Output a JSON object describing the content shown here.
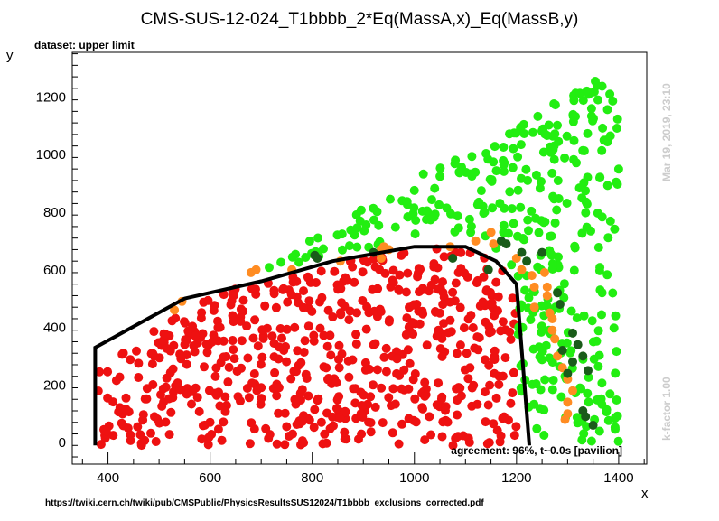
{
  "chart_data": {
    "type": "scatter",
    "title": "CMS-SUS-12-024_T1bbbb_2*Eq(MassA,x)_Eq(MassB,y)",
    "xlabel": "x",
    "ylabel": "y",
    "xlim": [
      330,
      1455
    ],
    "ylim": [
      -75,
      1355
    ],
    "xticks": [
      400,
      600,
      800,
      1000,
      1200,
      1400
    ],
    "yticks": [
      0,
      200,
      400,
      600,
      800,
      1000,
      1200
    ],
    "grid": false,
    "corner_label": "dataset: upper limit",
    "agreement_label": "agreement: 96%, t~0.0s [pavilion]",
    "source_url": "https://twiki.cern.ch/twiki/pub/CMSPublic/PhysicsResultsSUS12024/T1bbbb_exclusions_corrected.pdf",
    "timestamp": "Mar 19, 2019, 23:10",
    "kfactor": "k-factor 1.00",
    "colors": {
      "excluded": "#ee1111",
      "allowed": "#22ee11",
      "excluded_wrong": "#ff8c22",
      "allowed_wrong": "#1a5c1a",
      "contour": "#000000"
    },
    "contour": [
      [
        375,
        -10
      ],
      [
        375,
        330
      ],
      [
        550,
        500
      ],
      [
        700,
        560
      ],
      [
        840,
        630
      ],
      [
        1000,
        680
      ],
      [
        1100,
        680
      ],
      [
        1160,
        630
      ],
      [
        1200,
        550
      ],
      [
        1225,
        -10
      ]
    ],
    "orange_points": [
      [
        530,
        460
      ],
      [
        545,
        490
      ],
      [
        680,
        590
      ],
      [
        690,
        600
      ],
      [
        760,
        600
      ],
      [
        855,
        630
      ],
      [
        935,
        640
      ],
      [
        935,
        670
      ],
      [
        940,
        680
      ],
      [
        950,
        670
      ],
      [
        1070,
        680
      ],
      [
        1120,
        700
      ],
      [
        1150,
        730
      ],
      [
        1155,
        690
      ],
      [
        1200,
        640
      ],
      [
        1210,
        600
      ],
      [
        1230,
        580
      ],
      [
        1235,
        540
      ],
      [
        1235,
        470
      ],
      [
        1255,
        590
      ],
      [
        1260,
        540
      ],
      [
        1260,
        510
      ],
      [
        1265,
        450
      ],
      [
        1270,
        430
      ],
      [
        1270,
        390
      ],
      [
        1275,
        360
      ],
      [
        1280,
        300
      ],
      [
        1290,
        260
      ],
      [
        1300,
        220
      ],
      [
        1310,
        180
      ],
      [
        1300,
        140
      ],
      [
        1295,
        80
      ],
      [
        1300,
        100
      ]
    ],
    "dark_green_points": [
      [
        805,
        650
      ],
      [
        810,
        640
      ],
      [
        920,
        660
      ],
      [
        1075,
        640
      ],
      [
        1145,
        600
      ],
      [
        1170,
        700
      ],
      [
        1180,
        690
      ],
      [
        1210,
        660
      ],
      [
        1220,
        630
      ],
      [
        1250,
        660
      ],
      [
        1280,
        520
      ],
      [
        1285,
        480
      ],
      [
        1290,
        320
      ],
      [
        1300,
        240
      ],
      [
        1310,
        280
      ],
      [
        1310,
        380
      ],
      [
        1320,
        340
      ],
      [
        1330,
        110
      ],
      [
        1335,
        90
      ],
      [
        1340,
        250
      ],
      [
        1330,
        300
      ],
      [
        1350,
        60
      ]
    ],
    "red_seed": 20240524,
    "red_count": 620,
    "green_seed": 77123,
    "green_count": 360
  }
}
